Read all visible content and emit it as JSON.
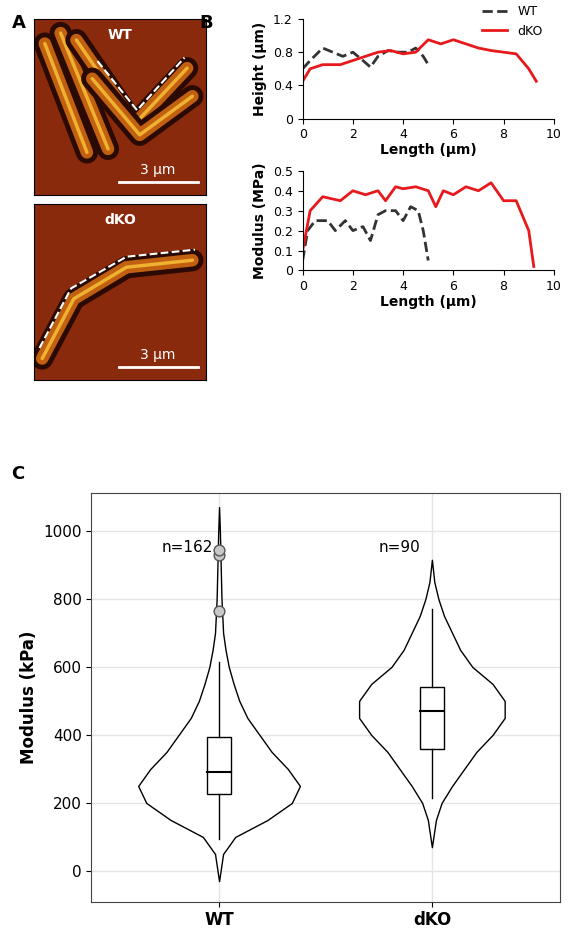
{
  "chart_data": [
    {
      "type": "image",
      "label": "A",
      "panels": [
        {
          "title": "WT",
          "scale_bar": {
            "value": 3,
            "label": "3 μm"
          }
        },
        {
          "title": "dKO",
          "scale_bar": {
            "value": 3,
            "label": "3 μm"
          }
        }
      ]
    },
    {
      "type": "line",
      "label": "B",
      "xlabel": "Length (μm)",
      "ylabel": "Height (μm)",
      "xlim": [
        0,
        10
      ],
      "xticks": [
        0,
        2,
        4,
        6,
        8,
        10
      ],
      "ylim": [
        0,
        1.2
      ],
      "yticks": [
        0,
        0.4,
        0.8,
        1.2
      ],
      "legend": "upper right",
      "series": [
        {
          "name": "WT",
          "color": "#333333",
          "line_style": "dashed",
          "x": [
            0,
            0.3,
            0.8,
            1.2,
            1.6,
            2,
            2.4,
            2.7,
            3,
            3.4,
            3.8,
            4.2,
            4.5,
            4.8,
            5
          ],
          "values": [
            0.6,
            0.7,
            0.85,
            0.8,
            0.75,
            0.8,
            0.7,
            0.62,
            0.75,
            0.82,
            0.8,
            0.8,
            0.85,
            0.75,
            0.65
          ]
        },
        {
          "name": "dKO",
          "color": "#e8191c",
          "line_style": "solid",
          "x": [
            0,
            0.3,
            0.8,
            1.5,
            2,
            2.5,
            3,
            3.5,
            4,
            4.5,
            5,
            5.5,
            6,
            6.5,
            7,
            7.5,
            8,
            8.5,
            9,
            9.3
          ],
          "values": [
            0.45,
            0.6,
            0.65,
            0.65,
            0.7,
            0.75,
            0.8,
            0.82,
            0.78,
            0.8,
            0.95,
            0.9,
            0.95,
            0.9,
            0.85,
            0.82,
            0.8,
            0.78,
            0.6,
            0.45
          ]
        }
      ]
    },
    {
      "type": "line",
      "xlabel": "Length (μm)",
      "ylabel": "Modulus (MPa)",
      "xlim": [
        0,
        10
      ],
      "xticks": [
        0,
        2,
        4,
        6,
        8,
        10
      ],
      "ylim": [
        0,
        0.5
      ],
      "yticks": [
        0,
        0.1,
        0.2,
        0.3,
        0.4,
        0.5
      ],
      "series": [
        {
          "name": "WT",
          "color": "#333333",
          "line_style": "dashed",
          "x": [
            0,
            0.2,
            0.5,
            1,
            1.3,
            1.7,
            2,
            2.4,
            2.7,
            3,
            3.3,
            3.7,
            4,
            4.3,
            4.6,
            4.8,
            5
          ],
          "values": [
            0.05,
            0.2,
            0.25,
            0.25,
            0.2,
            0.25,
            0.2,
            0.22,
            0.15,
            0.28,
            0.3,
            0.3,
            0.25,
            0.32,
            0.3,
            0.2,
            0.05
          ]
        },
        {
          "name": "dKO",
          "color": "#e8191c",
          "line_style": "solid",
          "x": [
            0,
            0.3,
            0.8,
            1.5,
            2,
            2.5,
            3,
            3.3,
            3.7,
            4,
            4.5,
            5,
            5.3,
            5.6,
            6,
            6.5,
            7,
            7.5,
            8,
            8.5,
            9,
            9.2
          ],
          "values": [
            0.1,
            0.3,
            0.37,
            0.35,
            0.4,
            0.38,
            0.4,
            0.35,
            0.42,
            0.41,
            0.42,
            0.4,
            0.32,
            0.4,
            0.38,
            0.42,
            0.4,
            0.44,
            0.35,
            0.35,
            0.2,
            0.02
          ]
        }
      ]
    },
    {
      "type": "violin",
      "label": "C",
      "ylabel": "Modulus (kPa)",
      "categories": [
        "WT",
        "dKO"
      ],
      "annotations": [
        "n=162",
        "n=90"
      ],
      "ylim": [
        -90,
        1110
      ],
      "yticks": [
        0,
        200,
        400,
        600,
        800,
        1000
      ],
      "grid": true,
      "groups": [
        {
          "q1": 225,
          "median": 290,
          "q3": 395,
          "whisker_low": 95,
          "whisker_high": 615,
          "outliers": [
            765,
            930,
            945
          ],
          "density_y": [
            -30,
            50,
            100,
            150,
            200,
            250,
            300,
            350,
            400,
            450,
            500,
            550,
            600,
            650,
            700,
            750,
            800,
            850,
            900,
            950,
            1000,
            1070
          ],
          "density": [
            0,
            0.05,
            0.2,
            0.6,
            0.9,
            1.0,
            0.85,
            0.65,
            0.5,
            0.35,
            0.25,
            0.18,
            0.12,
            0.08,
            0.05,
            0.04,
            0.03,
            0.025,
            0.02,
            0.015,
            0.01,
            0
          ]
        },
        {
          "q1": 360,
          "median": 470,
          "q3": 540,
          "whisker_low": 215,
          "whisker_high": 770,
          "outliers": [],
          "density_y": [
            70,
            150,
            200,
            250,
            300,
            350,
            400,
            450,
            500,
            550,
            600,
            650,
            700,
            750,
            800,
            850,
            915
          ],
          "density": [
            0,
            0.05,
            0.12,
            0.25,
            0.4,
            0.55,
            0.75,
            0.9,
            0.9,
            0.75,
            0.5,
            0.35,
            0.25,
            0.15,
            0.08,
            0.03,
            0
          ]
        }
      ]
    }
  ]
}
